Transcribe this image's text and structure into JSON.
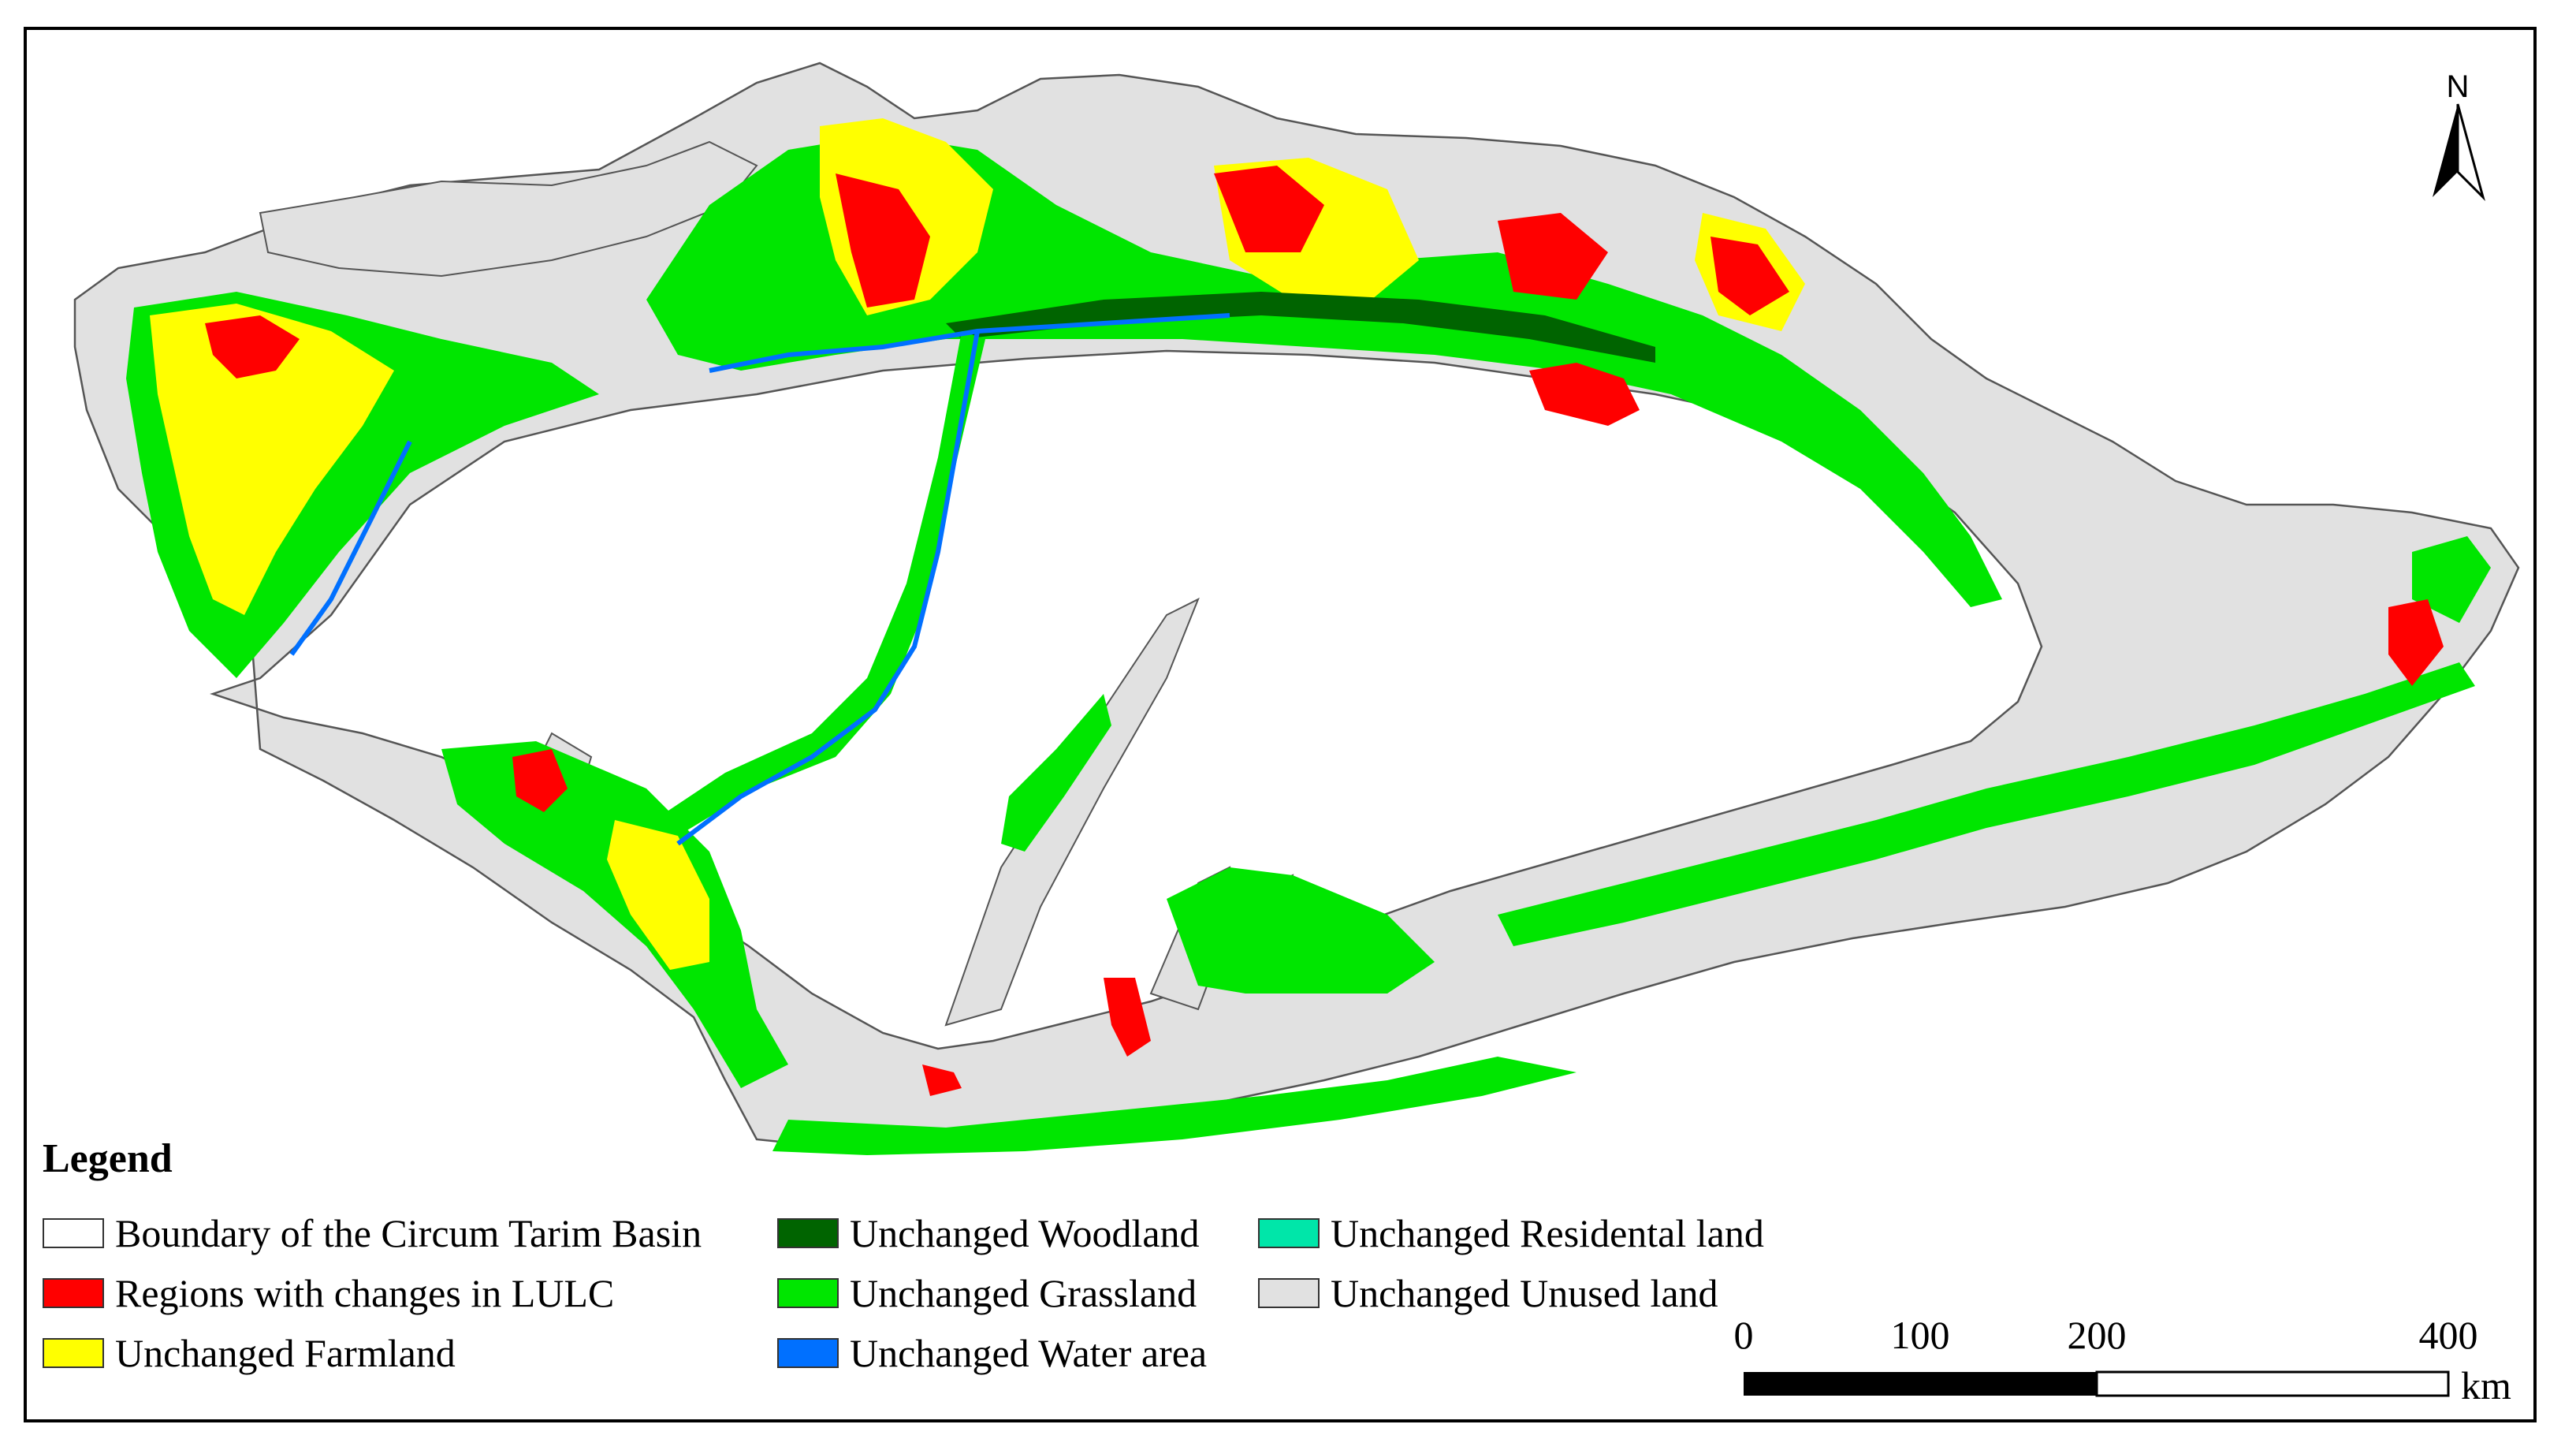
{
  "north_arrow": {
    "label": "N"
  },
  "legend": {
    "title": "Legend",
    "items": [
      {
        "label": "Boundary of the Circum Tarim Basin",
        "color": "#ffffff"
      },
      {
        "label": "Regions with changes in LULC",
        "color": "#ff0000"
      },
      {
        "label": "Unchanged Farmland",
        "color": "#ffff00"
      },
      {
        "label": "Unchanged Woodland",
        "color": "#006400"
      },
      {
        "label": "Unchanged Grassland",
        "color": "#00e600"
      },
      {
        "label": "Unchanged Water area",
        "color": "#0070ff"
      },
      {
        "label": "Unchanged Residental land",
        "color": "#00e6a9"
      },
      {
        "label": "Unchanged Unused land",
        "color": "#e1e1e1"
      }
    ]
  },
  "scale_bar": {
    "ticks": [
      "0",
      "100",
      "200",
      "400"
    ],
    "unit": "km"
  },
  "colors": {
    "unused": "#e1e1e1",
    "grassland": "#00e600",
    "farmland": "#ffff00",
    "change": "#ff0000",
    "woodland": "#006400",
    "water": "#0070ff",
    "boundary": "#555555"
  }
}
